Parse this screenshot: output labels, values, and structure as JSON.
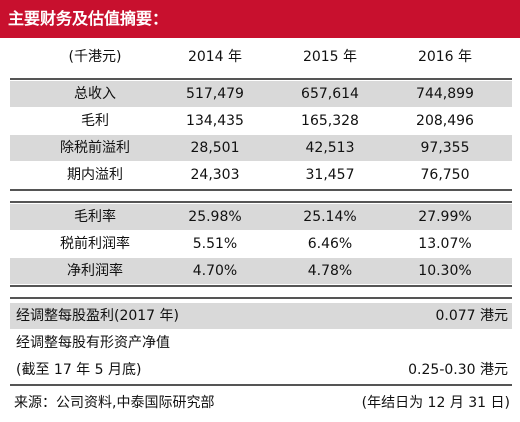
{
  "title": "主要财务及估值摘要：",
  "table": {
    "header": [
      "(千港元)",
      "2014 年",
      "2015 年",
      "2016 年"
    ],
    "groups": [
      [
        [
          "总收入",
          "517,479",
          "657,614",
          "744,899"
        ],
        [
          "毛利",
          "134,435",
          "165,328",
          "208,496"
        ],
        [
          "除税前溢利",
          "28,501",
          "42,513",
          "97,355"
        ],
        [
          "期内溢利",
          "24,303",
          "31,457",
          "76,750"
        ]
      ],
      [
        [
          "毛利率",
          "25.98%",
          "25.14%",
          "27.99%"
        ],
        [
          "税前利润率",
          "5.51%",
          "6.46%",
          "13.07%"
        ],
        [
          "净利润率",
          "4.70%",
          "4.78%",
          "10.30%"
        ]
      ]
    ]
  },
  "valuation": {
    "rows": [
      {
        "label": "经调整每股盈利(2017 年)",
        "value": "0.077 港元"
      },
      {
        "label": "经调整每股有形资产净值"
      },
      {
        "label": "(截至 17 年 5 月底)",
        "value": "0.25-0.30 港元"
      }
    ]
  },
  "footer": {
    "source": "来源：公司资料,中泰国际研究部",
    "note": "(年结日为 12 月 31 日)"
  }
}
